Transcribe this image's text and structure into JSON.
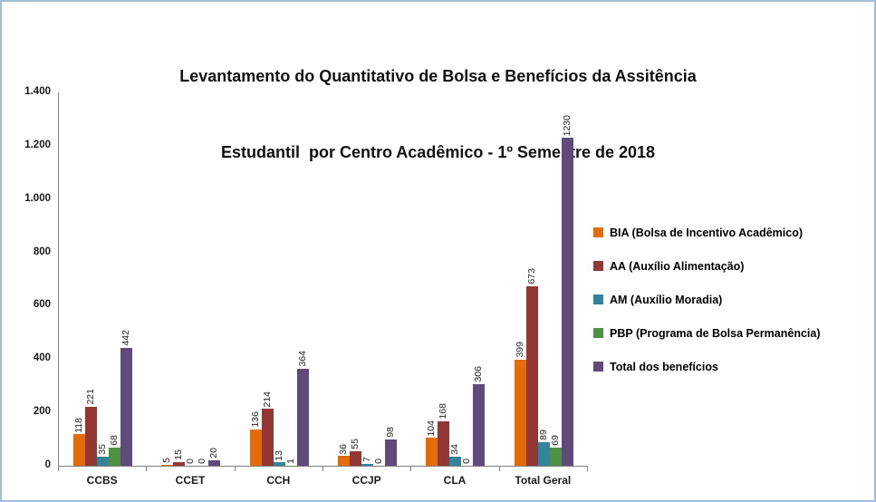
{
  "title": {
    "line1": "Levantamento do Quantitativo de Bolsa e Benefícios da Assitência",
    "line2": "Estudantil  por Centro Acadêmico - 1º Semestre de 2018"
  },
  "chart_data": {
    "type": "bar",
    "title": "Levantamento do Quantitativo de Bolsa e Benefícios da Assitência Estudantil por Centro Acadêmico - 1º Semestre de 2018",
    "categories": [
      "CCBS",
      "CCET",
      "CCH",
      "CCJP",
      "CLA",
      "Total Geral"
    ],
    "series": [
      {
        "name": "BIA (Bolsa de Incentivo Acadêmico)",
        "color": "#E36C09",
        "values": [
          118,
          5,
          136,
          36,
          104,
          399
        ]
      },
      {
        "name": "AA (Auxílio Alimentação)",
        "color": "#943634",
        "values": [
          221,
          15,
          214,
          55,
          168,
          673
        ]
      },
      {
        "name": "AM (Auxílio Moradia)",
        "color": "#31849B",
        "values": [
          35,
          0,
          13,
          7,
          34,
          89
        ]
      },
      {
        "name": "PBP (Programa de Bolsa Permanência)",
        "color": "#4F9143",
        "values": [
          68,
          0,
          1,
          0,
          0,
          69
        ]
      },
      {
        "name": "Total dos benefícios",
        "color": "#604A7B",
        "values": [
          442,
          20,
          364,
          98,
          306,
          1230
        ]
      }
    ],
    "y_axis": {
      "min": 0,
      "max": 1400,
      "step": 200,
      "tick_labels": [
        "0",
        "200",
        "400",
        "600",
        "800",
        "1.000",
        "1.200",
        "1.400"
      ]
    },
    "grid": false,
    "legend_position": "right",
    "data_labels": "rotated-90"
  }
}
